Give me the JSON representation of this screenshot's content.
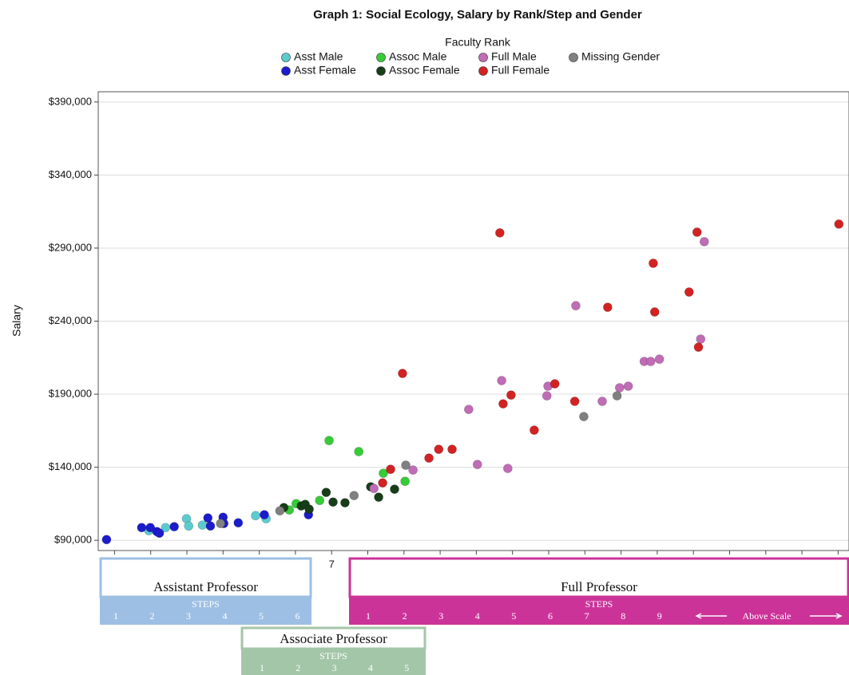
{
  "chart_data": {
    "type": "scatter",
    "title": "Graph 1: Social Ecology, Salary by Rank/Step and Gender",
    "y_label": "Salary",
    "legend_title": "Faculty Rank",
    "xlim": [
      0.55,
      21.3
    ],
    "ylim": [
      83000,
      397000
    ],
    "xticks": [
      1,
      2,
      3,
      4,
      5,
      6,
      7,
      8,
      9,
      10,
      11,
      12,
      13,
      14,
      15,
      16,
      17,
      18,
      19,
      20,
      21
    ],
    "yticks": [
      {
        "value": 90000,
        "label": "$90,000"
      },
      {
        "value": 140000,
        "label": "$140,000"
      },
      {
        "value": 190000,
        "label": "$190,000"
      },
      {
        "value": 240000,
        "label": "$240,000"
      },
      {
        "value": 290000,
        "label": "$290,000"
      },
      {
        "value": 340000,
        "label": "$340,000"
      },
      {
        "value": 390000,
        "label": "$390,000"
      }
    ],
    "grid": true,
    "series": [
      {
        "name": "Asst Male",
        "color": "#5ccbcf",
        "x": [
          1.95,
          2.41,
          2.99,
          3.05,
          3.43,
          4.9,
          5.19
        ],
        "values": [
          96600,
          98700,
          104800,
          99800,
          100400,
          106900,
          104800
        ]
      },
      {
        "name": "Asst Female",
        "color": "#1c1ccc",
        "x": [
          0.78,
          1.75,
          1.99,
          2.17,
          2.24,
          2.65,
          3.58,
          3.65,
          4.0,
          4.02,
          4.42,
          5.14,
          6.36
        ],
        "values": [
          90500,
          98700,
          98700,
          96000,
          94900,
          99300,
          105300,
          99800,
          105800,
          101500,
          102000,
          107500,
          107500
        ]
      },
      {
        "name": "Assoc Male",
        "color": "#36cc36",
        "x": [
          5.83,
          6.02,
          6.67,
          6.93,
          7.75,
          8.43,
          9.03
        ],
        "values": [
          110800,
          115100,
          117300,
          158300,
          150700,
          135900,
          130400
        ]
      },
      {
        "name": "Assoc Female",
        "color": "#173d19",
        "x": [
          5.68,
          6.16,
          6.27,
          6.38,
          6.85,
          7.04,
          7.37,
          8.08,
          8.3,
          8.74
        ],
        "values": [
          112400,
          113500,
          114600,
          111300,
          122800,
          116200,
          115700,
          126600,
          119500,
          125000
        ]
      },
      {
        "name": "Full Male",
        "color": "#c06cb6",
        "x": [
          8.17,
          9.25,
          10.79,
          11.03,
          11.7,
          11.87,
          12.95,
          12.98,
          13.75,
          14.48,
          14.96,
          15.2,
          15.64,
          15.82,
          16.06,
          17.2,
          17.3
        ],
        "values": [
          125500,
          138100,
          179600,
          141900,
          199300,
          139200,
          188900,
          195500,
          250600,
          185100,
          194400,
          195500,
          212400,
          212400,
          214000,
          227700,
          294400
        ]
      },
      {
        "name": "Full Female",
        "color": "#d42222",
        "x": [
          11.65,
          8.96,
          8.63,
          8.41,
          9.69,
          9.96,
          10.33,
          11.74,
          11.96,
          12.6,
          13.17,
          13.72,
          14.63,
          15.89,
          15.93,
          16.88,
          17.1,
          17.14,
          21.02
        ],
        "values": [
          300400,
          204200,
          138600,
          129300,
          146300,
          152300,
          152300,
          183400,
          189400,
          165400,
          197100,
          185100,
          249500,
          279600,
          246300,
          259900,
          300900,
          222200,
          306400
        ]
      },
      {
        "name": "Missing Gender",
        "color": "#808080",
        "x": [
          5.57,
          3.93,
          7.62,
          9.05,
          13.97,
          14.89
        ],
        "values": [
          110200,
          101500,
          120600,
          141400,
          174700,
          188900
        ]
      }
    ],
    "rank_bands": [
      {
        "title": "Assistant Professor",
        "steps_label": "STEPS",
        "steps": [
          1,
          2,
          3,
          4,
          5,
          6
        ],
        "color": "#9dbfe4"
      },
      {
        "title": "Associate Professor",
        "steps_label": "STEPS",
        "steps": [
          1,
          2,
          3,
          4,
          5
        ],
        "color": "#a3c6a9"
      },
      {
        "title": "Full Professor",
        "steps_label": "STEPS",
        "steps": [
          1,
          2,
          3,
          4,
          5,
          6,
          7,
          8,
          9
        ],
        "extra": "Above Scale",
        "color": "#cc3399"
      }
    ]
  }
}
